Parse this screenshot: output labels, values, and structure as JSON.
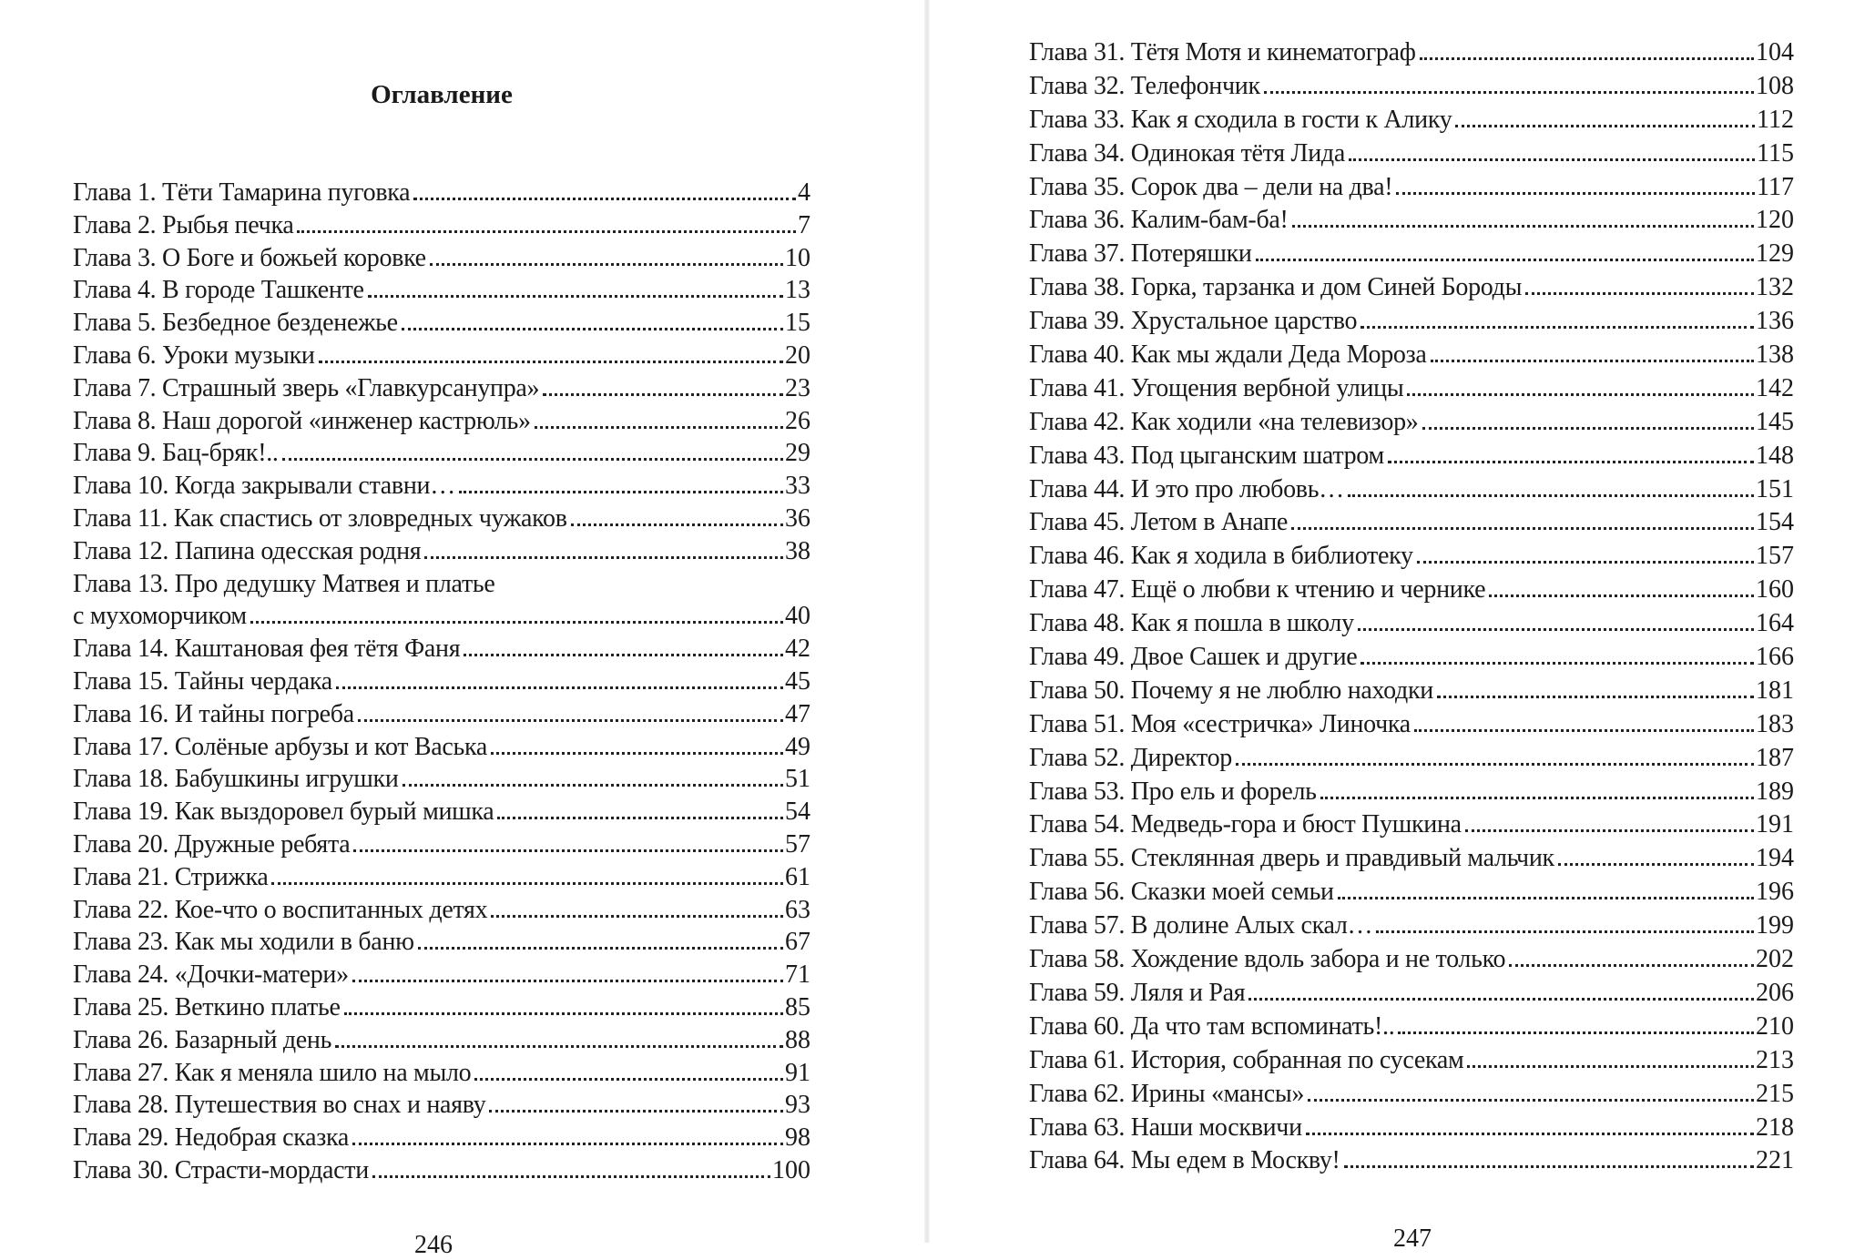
{
  "left_page": {
    "title": "Оглавление",
    "page_number": "246",
    "entries": [
      {
        "title": "Глава 1. Тёти Тамарина пуговка",
        "page": "4"
      },
      {
        "title": "Глава 2. Рыбья печка",
        "page": "7"
      },
      {
        "title": "Глава 3. О Боге и божьей коровке",
        "page": "10"
      },
      {
        "title": "Глава 4. В городе Ташкенте",
        "page": "13"
      },
      {
        "title": "Глава 5. Безбедное безденежье",
        "page": "15"
      },
      {
        "title": "Глава 6. Уроки музыки",
        "page": "20"
      },
      {
        "title": "Глава 7. Страшный зверь «Главкурсанупра»",
        "page": "23"
      },
      {
        "title": "Глава 8. Наш дорогой «инженер кастрюль»",
        "page": "26"
      },
      {
        "title": "Глава 9. Бац-бряк!..",
        "page": "29"
      },
      {
        "title": "Глава 10. Когда закрывали ставни…",
        "page": "33"
      },
      {
        "title": "Глава 11. Как спастись от зловредных чужаков",
        "page": "36"
      },
      {
        "title": "Глава 12. Папина одесская родня",
        "page": "38"
      },
      {
        "title": "Глава 13. Про дедушку Матвея и платье",
        "page": ""
      },
      {
        "title": "с мухоморчиком",
        "page": "40"
      },
      {
        "title": "Глава 14. Каштановая фея тётя Фаня",
        "page": "42"
      },
      {
        "title": "Глава 15. Тайны чердака",
        "page": "45"
      },
      {
        "title": "Глава 16.  И тайны погреба",
        "page": "47"
      },
      {
        "title": "Глава 17. Солёные арбузы и кот Васька",
        "page": "49"
      },
      {
        "title": "Глава 18. Бабушкины игрушки",
        "page": "51"
      },
      {
        "title": "Глава 19. Как выздоровел бурый мишка",
        "page": "54"
      },
      {
        "title": "Глава 20. Дружные ребята",
        "page": "57"
      },
      {
        "title": "Глава 21. Стрижка",
        "page": "61"
      },
      {
        "title": "Глава 22. Кое-что о воспитанных детях",
        "page": "63"
      },
      {
        "title": "Глава 23. Как мы ходили в баню",
        "page": "67"
      },
      {
        "title": "Глава 24. «Дочки-матери»",
        "page": "71"
      },
      {
        "title": "Глава 25. Веткино платье",
        "page": "85"
      },
      {
        "title": "Глава 26. Базарный день",
        "page": "88"
      },
      {
        "title": "Глава 27. Как я меняла шило на мыло",
        "page": "91"
      },
      {
        "title": "Глава 28. Путешествия во снах и наяву",
        "page": "93"
      },
      {
        "title": "Глава 29. Недобрая сказка",
        "page": "98"
      },
      {
        "title": "Глава 30. Страсти-мордасти",
        "page": "100"
      }
    ]
  },
  "right_page": {
    "page_number": "247",
    "entries": [
      {
        "title": "Глава 31. Тётя Мотя и кинематограф",
        "page": "104"
      },
      {
        "title": "Глава 32. Телефончик",
        "page": "108"
      },
      {
        "title": "Глава 33. Как я сходила в гости к Алику",
        "page": "112"
      },
      {
        "title": "Глава 34. Одинокая тётя Лида",
        "page": "115"
      },
      {
        "title": "Глава 35. Сорок два – дели на два!",
        "page": "117"
      },
      {
        "title": "Глава 36. Калим-бам-ба!",
        "page": "120"
      },
      {
        "title": "Глава 37. Потеряшки",
        "page": "129"
      },
      {
        "title": "Глава 38. Горка, тарзанка и дом Синей Бороды",
        "page": "132"
      },
      {
        "title": "Глава 39. Хрустальное царство",
        "page": "136"
      },
      {
        "title": "Глава 40. Как мы ждали Деда Мороза",
        "page": "138"
      },
      {
        "title": "Глава 41. Угощения вербной улицы",
        "page": "142"
      },
      {
        "title": "Глава 42. Как ходили «на телевизор»",
        "page": "145"
      },
      {
        "title": "Глава 43. Под цыганским шатром",
        "page": "148"
      },
      {
        "title": "Глава 44. И это про любовь…",
        "page": "151"
      },
      {
        "title": "Глава 45. Летом в Анапе",
        "page": "154"
      },
      {
        "title": "Глава 46. Как я ходила в библиотеку",
        "page": "157"
      },
      {
        "title": "Глава 47. Ещё о любви к чтению и чернике",
        "page": "160"
      },
      {
        "title": "Глава 48. Как я пошла в школу",
        "page": "164"
      },
      {
        "title": "Глава 49. Двое Сашек и другие",
        "page": "166"
      },
      {
        "title": "Глава 50. Почему я не люблю находки",
        "page": "181"
      },
      {
        "title": "Глава 51. Моя «сестричка» Линочка",
        "page": "183"
      },
      {
        "title": "Глава 52. Директор",
        "page": "187"
      },
      {
        "title": "Глава 53. Про ель и форель",
        "page": "189"
      },
      {
        "title": "Глава 54. Медведь-гора и бюст Пушкина",
        "page": "191"
      },
      {
        "title": "Глава 55. Стеклянная дверь и правдивый мальчик",
        "page": "194"
      },
      {
        "title": "Глава 56. Сказки моей семьи",
        "page": "196"
      },
      {
        "title": "Глава 57. В долине Алых скал…",
        "page": "199"
      },
      {
        "title": "Глава 58. Хождение вдоль забора и не только",
        "page": "202"
      },
      {
        "title": "Глава 59. Ляля и Рая",
        "page": "206"
      },
      {
        "title": "Глава 60. Да что там вспоминать!..",
        "page": "210"
      },
      {
        "title": "Глава 61. История, собранная по сусекам",
        "page": "213"
      },
      {
        "title": "Глава 62. Ирины «мансы»",
        "page": "215"
      },
      {
        "title": "Глава 63. Наши москвичи",
        "page": "218"
      },
      {
        "title": "Глава 64. Мы едем в Москву!",
        "page": "221"
      }
    ]
  }
}
